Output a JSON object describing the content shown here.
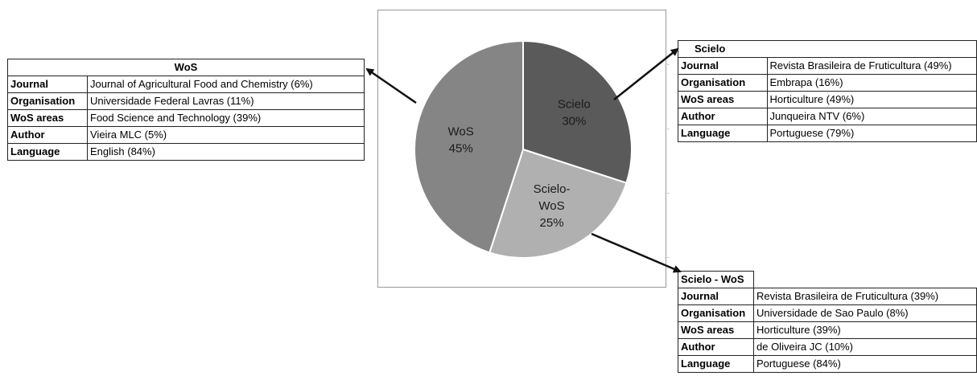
{
  "chart_data": {
    "type": "pie",
    "slices": [
      {
        "label": "Scielo",
        "value": 30,
        "pct_label": "30%",
        "color": "#5a5a5a"
      },
      {
        "label": "Scielo-WoS",
        "value": 25,
        "pct_label": "25%",
        "color": "#b0b0b0"
      },
      {
        "label": "WoS",
        "value": 45,
        "pct_label": "45%",
        "color": "#858585"
      }
    ]
  },
  "tables": {
    "wos": {
      "title": "WoS",
      "rows": [
        {
          "key": "Journal",
          "value": "Journal of Agricultural Food and Chemistry (6%)"
        },
        {
          "key": "Organisation",
          "value": "Universidade Federal Lavras (11%)"
        },
        {
          "key": "WoS areas",
          "value": "Food Science and Technology (39%)"
        },
        {
          "key": "Author",
          "value": "Vieira MLC (5%)"
        },
        {
          "key": "Language",
          "value": "English (84%)"
        }
      ]
    },
    "scielo": {
      "title": "Scielo",
      "rows": [
        {
          "key": "Journal",
          "value": "Revista Brasileira de Fruticultura (49%)"
        },
        {
          "key": "Organisation",
          "value": "Embrapa (16%)"
        },
        {
          "key": "WoS areas",
          "value": "Horticulture (49%)"
        },
        {
          "key": "Author",
          "value": "Junqueira NTV (6%)"
        },
        {
          "key": "Language",
          "value": "Portuguese (79%)"
        }
      ]
    },
    "scielo_wos": {
      "title": "Scielo - WoS",
      "rows": [
        {
          "key": "Journal",
          "value": "Revista Brasileira de Fruticultura (39%)"
        },
        {
          "key": "Organisation",
          "value": "Universidade de Sao Paulo (8%)"
        },
        {
          "key": "WoS areas",
          "value": "Horticulture (39%)"
        },
        {
          "key": "Author",
          "value": "de Oliveira JC (10%)"
        },
        {
          "key": "Language",
          "value": "Portuguese (84%)"
        }
      ]
    }
  },
  "colors": {
    "arrow": "#111111",
    "slice_border": "#ffffff"
  }
}
